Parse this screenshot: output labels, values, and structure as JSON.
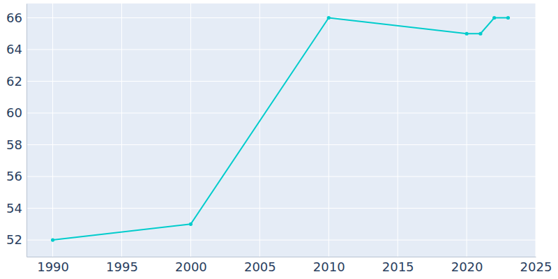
{
  "chart_data": {
    "type": "line",
    "x": [
      1990,
      2000,
      2010,
      2020,
      2021,
      2022,
      2023
    ],
    "values": [
      52,
      53,
      66,
      65,
      65,
      66,
      66
    ],
    "color": "#00cccc",
    "marker": "circle",
    "xlim": [
      1988.1,
      2025
    ],
    "xticks": [
      1990,
      1995,
      2000,
      2005,
      2010,
      2015,
      2020,
      2025
    ],
    "ylim": [
      50.95,
      66.9
    ],
    "yticks": [
      52,
      54,
      56,
      58,
      60,
      62,
      64,
      66
    ],
    "grid": true
  }
}
